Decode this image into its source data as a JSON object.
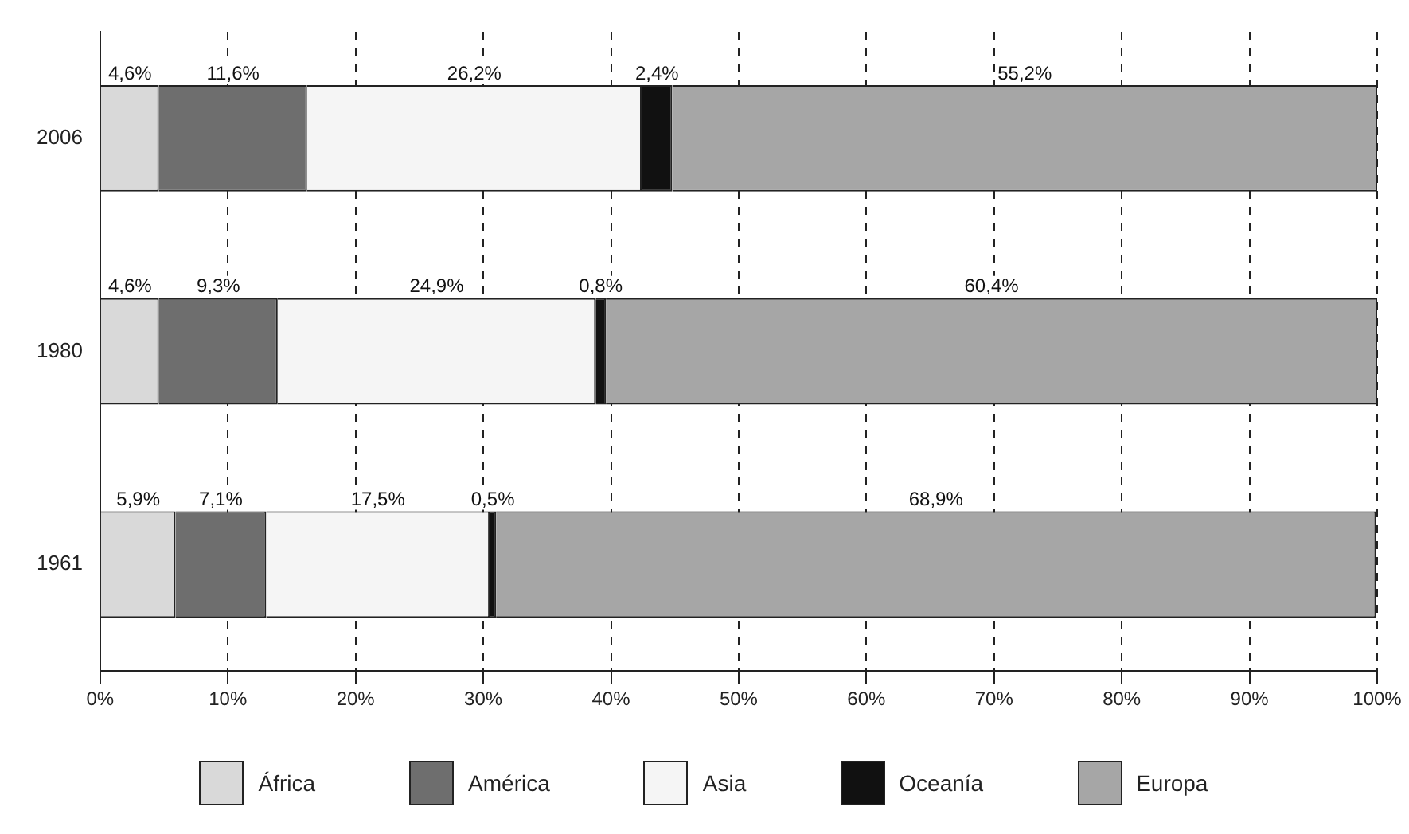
{
  "chart_data": {
    "type": "bar",
    "orientation": "horizontal",
    "stacked": true,
    "categories": [
      "2006",
      "1980",
      "1961"
    ],
    "series": [
      {
        "name": "África",
        "color": "#d9d9d9",
        "values": [
          4.6,
          4.6,
          5.9
        ],
        "value_labels": [
          "4,6%",
          "4,6%",
          "5,9%"
        ]
      },
      {
        "name": "América",
        "color": "#6e6e6e",
        "values": [
          11.6,
          9.3,
          7.1
        ],
        "value_labels": [
          "11,6%",
          "9,3%",
          "7,1%"
        ]
      },
      {
        "name": "Asia",
        "color": "#f5f5f5",
        "values": [
          26.2,
          24.9,
          17.5
        ],
        "value_labels": [
          "26,2%",
          "24,9%",
          "17,5%"
        ]
      },
      {
        "name": "Oceanía",
        "color": "#111111",
        "values": [
          2.4,
          0.8,
          0.5
        ],
        "value_labels": [
          "2,4%",
          "0,8%",
          "0,5%"
        ]
      },
      {
        "name": "Europa",
        "color": "#a6a6a6",
        "values": [
          55.2,
          60.4,
          68.9
        ],
        "value_labels": [
          "55,2%",
          "60,4%",
          "68,9%"
        ]
      }
    ],
    "xlim": [
      0,
      100
    ],
    "xticks": [
      {
        "value": 0,
        "label": "0%"
      },
      {
        "value": 10,
        "label": "10%"
      },
      {
        "value": 20,
        "label": "20%"
      },
      {
        "value": 30,
        "label": "30%"
      },
      {
        "value": 40,
        "label": "40%"
      },
      {
        "value": 50,
        "label": "50%"
      },
      {
        "value": 60,
        "label": "60%"
      },
      {
        "value": 70,
        "label": "70%"
      },
      {
        "value": 80,
        "label": "80%"
      },
      {
        "value": 90,
        "label": "90%"
      },
      {
        "value": 100,
        "label": "100%"
      }
    ],
    "grid": "x",
    "legend": "bottom"
  }
}
